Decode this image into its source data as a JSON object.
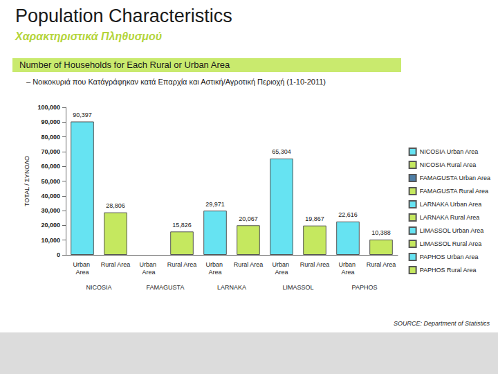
{
  "header": {
    "title": "Population Characteristics",
    "subtitle": "Χαρακτηριστικά Πληθυσμού"
  },
  "source": "SOURCE: Department of Statistics",
  "chart_data": {
    "type": "bar",
    "title": "Number of Households for Each Rural or Urban Area",
    "subtitle": "– Νοικοκυριά που Κατάγράφηκαν κατά Επαρχία και Αστική/Αγροτική Περιοχή (1-10-2011)",
    "y_label": "TOTAL / ΣΥΝΟΛΟ",
    "categories": [
      "Urban Area",
      "Rural Area",
      "Urban Area",
      "Rural Area",
      "Urban Area",
      "Rural Area",
      "Urban Area",
      "Rural Area",
      "Urban Area",
      "Rural Area"
    ],
    "groups": [
      "NICOSIA",
      "FAMAGUSTA",
      "LARNAKA",
      "LIMASSOL",
      "PAPHOS"
    ],
    "series": [
      {
        "name": "NICOSIA Urban Area",
        "color": "#66e3f2",
        "values": [
          90397,
          null,
          null,
          null,
          null,
          null,
          null,
          null,
          null,
          null
        ],
        "value_labels": [
          "90,397",
          null,
          null,
          null,
          null,
          null,
          null,
          null,
          null,
          null
        ]
      },
      {
        "name": "NICOSIA Rural Area",
        "color": "#c5e85f",
        "values": [
          null,
          28806,
          null,
          null,
          null,
          null,
          null,
          null,
          null,
          null
        ],
        "value_labels": [
          null,
          "28,806",
          null,
          null,
          null,
          null,
          null,
          null,
          null,
          null
        ]
      },
      {
        "name": "FAMAGUSTA Urban Area",
        "color": "#4e7ea6",
        "values": [
          null,
          null,
          null,
          null,
          null,
          null,
          null,
          null,
          null,
          null
        ],
        "value_labels": [
          null,
          null,
          null,
          null,
          null,
          null,
          null,
          null,
          null,
          null
        ]
      },
      {
        "name": "FAMAGUSTA Rural Area",
        "color": "#c5e85f",
        "values": [
          null,
          null,
          null,
          15826,
          null,
          null,
          null,
          null,
          null,
          null
        ],
        "value_labels": [
          null,
          null,
          null,
          "15,826",
          null,
          null,
          null,
          null,
          null,
          null
        ]
      },
      {
        "name": "LARNAKA Urban Area",
        "color": "#66e3f2",
        "values": [
          null,
          null,
          null,
          null,
          29971,
          null,
          null,
          null,
          null,
          null
        ],
        "value_labels": [
          null,
          null,
          null,
          null,
          "29,971",
          null,
          null,
          null,
          null,
          null
        ]
      },
      {
        "name": "LARNAKA Rural Area",
        "color": "#c5e85f",
        "values": [
          null,
          null,
          null,
          null,
          null,
          20067,
          null,
          null,
          null,
          null
        ],
        "value_labels": [
          null,
          null,
          null,
          null,
          null,
          "20,067",
          null,
          null,
          null,
          null
        ]
      },
      {
        "name": "LIMASSOL Urban Area",
        "color": "#66e3f2",
        "values": [
          null,
          null,
          null,
          null,
          null,
          null,
          65304,
          null,
          null,
          null
        ],
        "value_labels": [
          null,
          null,
          null,
          null,
          null,
          null,
          "65,304",
          null,
          null,
          null
        ]
      },
      {
        "name": "LIMASSOL Rural Area",
        "color": "#c5e85f",
        "values": [
          null,
          null,
          null,
          null,
          null,
          null,
          null,
          19867,
          null,
          null
        ],
        "value_labels": [
          null,
          null,
          null,
          null,
          null,
          null,
          null,
          "19,867",
          null,
          null
        ]
      },
      {
        "name": "PAPHOS Urban Area",
        "color": "#66e3f2",
        "values": [
          null,
          null,
          null,
          null,
          null,
          null,
          null,
          null,
          22616,
          null
        ],
        "value_labels": [
          null,
          null,
          null,
          null,
          null,
          null,
          null,
          null,
          "22,616",
          null
        ]
      },
      {
        "name": "PAPHOS Rural Area",
        "color": "#c5e85f",
        "values": [
          null,
          null,
          null,
          null,
          null,
          null,
          null,
          null,
          null,
          10388
        ],
        "value_labels": [
          null,
          null,
          null,
          null,
          null,
          null,
          null,
          null,
          null,
          "10,388"
        ]
      }
    ],
    "ylim": [
      0,
      100000
    ],
    "yticks": [
      0,
      {
        "value": 10000,
        "label": "10,000"
      },
      {
        "value": 20000,
        "label": "20,000"
      },
      {
        "value": 30000,
        "label": "30,000"
      },
      {
        "value": 40000,
        "label": "40,000"
      },
      {
        "value": 50000,
        "label": "50,000"
      },
      {
        "value": 60000,
        "label": "60,000"
      },
      {
        "value": 70000,
        "label": "70,000"
      },
      {
        "value": 80000,
        "label": "80,000"
      },
      {
        "value": 90000,
        "label": "90,000"
      },
      {
        "value": 100000,
        "label": "100,000"
      }
    ],
    "grid": false,
    "legend": "right",
    "data_labels": true
  }
}
